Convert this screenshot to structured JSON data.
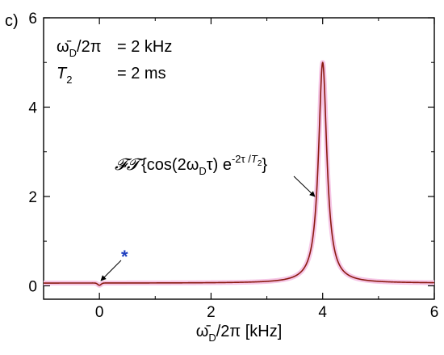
{
  "panel_label": "c)",
  "params": [
    {
      "name": "ω̄",
      "sub": "D",
      "suffix": "/2π",
      "eq": "= 2 kHz"
    },
    {
      "name": "T",
      "sub": "2",
      "suffix": "",
      "eq": "= 2 ms"
    }
  ],
  "annotation": {
    "ft_op": "𝓕𝓣",
    "open": "{",
    "body_a": "cos(2ω",
    "body_sub": "D",
    "body_b": "τ) e",
    "exp_a": "-2τ /",
    "exp_T": "T",
    "exp_sub": "2",
    "close": "}",
    "star": "*"
  },
  "colors": {
    "curve": "#8b1a10",
    "glow": "#f6c6e6",
    "star": "#1f3fbf"
  },
  "chart_data": {
    "type": "line",
    "xlabel": {
      "sym": "ω̄",
      "sub": "D",
      "rest": "/2π [kHz]"
    },
    "ylabel": "",
    "xlim": [
      -1,
      6
    ],
    "ylim": [
      -0.3,
      6
    ],
    "xticks": [
      0,
      2,
      4,
      6
    ],
    "yticks": [
      0,
      2,
      4,
      6
    ],
    "grid": false,
    "series": [
      {
        "peak_center_khz": 4.0,
        "peak_height": 5.0,
        "baseline": 0.06,
        "dip_center_khz": 0.0,
        "dip_depth": 0.05
      }
    ]
  }
}
